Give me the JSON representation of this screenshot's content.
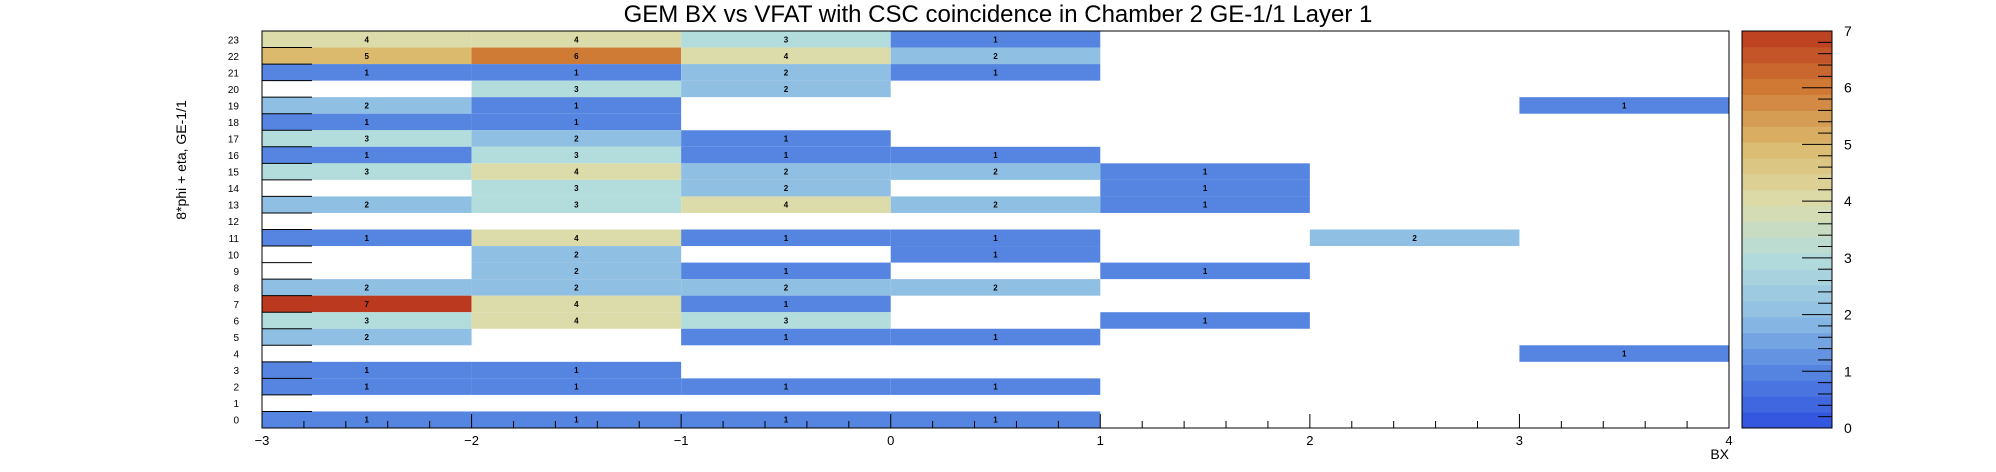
{
  "chart_data": {
    "type": "heatmap",
    "title": "GEM BX vs VFAT with CSC coincidence in Chamber 2 GE-1/1 Layer 1",
    "xlabel": "BX",
    "ylabel": "8*phi + eta, GE-1/1",
    "xlim": [
      -3,
      4
    ],
    "ylim": [
      0,
      24
    ],
    "x_ticks": [
      "−3",
      "−2",
      "−1",
      "0",
      "1",
      "2",
      "3",
      "4"
    ],
    "y_ticks": [
      "0",
      "1",
      "2",
      "3",
      "4",
      "5",
      "6",
      "7",
      "8",
      "9",
      "10",
      "11",
      "12",
      "13",
      "14",
      "15",
      "16",
      "17",
      "18",
      "19",
      "20",
      "21",
      "22",
      "23"
    ],
    "z_range": [
      0,
      7
    ],
    "z_ticks": [
      "0",
      "1",
      "2",
      "3",
      "4",
      "5",
      "6",
      "7"
    ],
    "colormap_stops": [
      "#3050e0",
      "#5585e0",
      "#8fbfe3",
      "#b3dcdc",
      "#dcdcaa",
      "#dbb96d",
      "#cf7a35",
      "#bb3a1f"
    ],
    "cells": [
      {
        "x0": -3,
        "x1": -2,
        "y": 23,
        "value": 4
      },
      {
        "x0": -2,
        "x1": -1,
        "y": 23,
        "value": 4
      },
      {
        "x0": -1,
        "x1": 0,
        "y": 23,
        "value": 3
      },
      {
        "x0": 0,
        "x1": 1,
        "y": 23,
        "value": 1
      },
      {
        "x0": -3,
        "x1": -2,
        "y": 22,
        "value": 5
      },
      {
        "x0": -2,
        "x1": -1,
        "y": 22,
        "value": 6
      },
      {
        "x0": -1,
        "x1": 0,
        "y": 22,
        "value": 4
      },
      {
        "x0": 0,
        "x1": 1,
        "y": 22,
        "value": 2
      },
      {
        "x0": -3,
        "x1": -2,
        "y": 21,
        "value": 1
      },
      {
        "x0": -2,
        "x1": -1,
        "y": 21,
        "value": 1
      },
      {
        "x0": -1,
        "x1": 0,
        "y": 21,
        "value": 2
      },
      {
        "x0": 0,
        "x1": 1,
        "y": 21,
        "value": 1
      },
      {
        "x0": -2,
        "x1": -1,
        "y": 20,
        "value": 3
      },
      {
        "x0": -1,
        "x1": 0,
        "y": 20,
        "value": 2
      },
      {
        "x0": -3,
        "x1": -2,
        "y": 19,
        "value": 2
      },
      {
        "x0": -2,
        "x1": -1,
        "y": 19,
        "value": 1
      },
      {
        "x0": 3,
        "x1": 4,
        "y": 19,
        "value": 1
      },
      {
        "x0": -3,
        "x1": -2,
        "y": 18,
        "value": 1
      },
      {
        "x0": -2,
        "x1": -1,
        "y": 18,
        "value": 1
      },
      {
        "x0": -3,
        "x1": -2,
        "y": 17,
        "value": 3
      },
      {
        "x0": -2,
        "x1": -1,
        "y": 17,
        "value": 2
      },
      {
        "x0": -1,
        "x1": 0,
        "y": 17,
        "value": 1
      },
      {
        "x0": -3,
        "x1": -2,
        "y": 16,
        "value": 1
      },
      {
        "x0": -2,
        "x1": -1,
        "y": 16,
        "value": 3
      },
      {
        "x0": -1,
        "x1": 0,
        "y": 16,
        "value": 1
      },
      {
        "x0": 0,
        "x1": 1,
        "y": 16,
        "value": 1
      },
      {
        "x0": -3,
        "x1": -2,
        "y": 15,
        "value": 3
      },
      {
        "x0": -2,
        "x1": -1,
        "y": 15,
        "value": 4
      },
      {
        "x0": -1,
        "x1": 0,
        "y": 15,
        "value": 2
      },
      {
        "x0": 0,
        "x1": 1,
        "y": 15,
        "value": 2
      },
      {
        "x0": 1,
        "x1": 2,
        "y": 15,
        "value": 1
      },
      {
        "x0": -2,
        "x1": -1,
        "y": 14,
        "value": 3
      },
      {
        "x0": -1,
        "x1": 0,
        "y": 14,
        "value": 2
      },
      {
        "x0": 1,
        "x1": 2,
        "y": 14,
        "value": 1
      },
      {
        "x0": -3,
        "x1": -2,
        "y": 13,
        "value": 2
      },
      {
        "x0": -2,
        "x1": -1,
        "y": 13,
        "value": 3
      },
      {
        "x0": -1,
        "x1": 0,
        "y": 13,
        "value": 4
      },
      {
        "x0": 0,
        "x1": 1,
        "y": 13,
        "value": 2
      },
      {
        "x0": 1,
        "x1": 2,
        "y": 13,
        "value": 1
      },
      {
        "x0": -3,
        "x1": -2,
        "y": 11,
        "value": 1
      },
      {
        "x0": -2,
        "x1": -1,
        "y": 11,
        "value": 4
      },
      {
        "x0": -1,
        "x1": 0,
        "y": 11,
        "value": 1
      },
      {
        "x0": 0,
        "x1": 1,
        "y": 11,
        "value": 1
      },
      {
        "x0": 2,
        "x1": 3,
        "y": 11,
        "value": 2
      },
      {
        "x0": -2,
        "x1": -1,
        "y": 10,
        "value": 2
      },
      {
        "x0": 0,
        "x1": 1,
        "y": 10,
        "value": 1
      },
      {
        "x0": -2,
        "x1": -1,
        "y": 9,
        "value": 2
      },
      {
        "x0": -1,
        "x1": 0,
        "y": 9,
        "value": 1
      },
      {
        "x0": 1,
        "x1": 2,
        "y": 9,
        "value": 1
      },
      {
        "x0": -3,
        "x1": -2,
        "y": 8,
        "value": 2
      },
      {
        "x0": -2,
        "x1": -1,
        "y": 8,
        "value": 2
      },
      {
        "x0": -1,
        "x1": 0,
        "y": 8,
        "value": 2
      },
      {
        "x0": 0,
        "x1": 1,
        "y": 8,
        "value": 2
      },
      {
        "x0": -3,
        "x1": -2,
        "y": 7,
        "value": 7
      },
      {
        "x0": -2,
        "x1": -1,
        "y": 7,
        "value": 4
      },
      {
        "x0": -1,
        "x1": 0,
        "y": 7,
        "value": 1
      },
      {
        "x0": -3,
        "x1": -2,
        "y": 6,
        "value": 3
      },
      {
        "x0": -2,
        "x1": -1,
        "y": 6,
        "value": 4
      },
      {
        "x0": -1,
        "x1": 0,
        "y": 6,
        "value": 3
      },
      {
        "x0": 1,
        "x1": 2,
        "y": 6,
        "value": 1
      },
      {
        "x0": -3,
        "x1": -2,
        "y": 5,
        "value": 2
      },
      {
        "x0": -1,
        "x1": 0,
        "y": 5,
        "value": 1
      },
      {
        "x0": 0,
        "x1": 1,
        "y": 5,
        "value": 1
      },
      {
        "x0": 3,
        "x1": 4,
        "y": 4,
        "value": 1
      },
      {
        "x0": -3,
        "x1": -2,
        "y": 3,
        "value": 1
      },
      {
        "x0": -2,
        "x1": -1,
        "y": 3,
        "value": 1
      },
      {
        "x0": -3,
        "x1": -2,
        "y": 2,
        "value": 1
      },
      {
        "x0": -2,
        "x1": -1,
        "y": 2,
        "value": 1
      },
      {
        "x0": -1,
        "x1": 0,
        "y": 2,
        "value": 1
      },
      {
        "x0": 0,
        "x1": 1,
        "y": 2,
        "value": 1
      },
      {
        "x0": -3,
        "x1": -2,
        "y": 0,
        "value": 1
      },
      {
        "x0": -2,
        "x1": -1,
        "y": 0,
        "value": 1
      },
      {
        "x0": -1,
        "x1": 0,
        "y": 0,
        "value": 1
      },
      {
        "x0": 0,
        "x1": 1,
        "y": 0,
        "value": 1
      }
    ]
  }
}
